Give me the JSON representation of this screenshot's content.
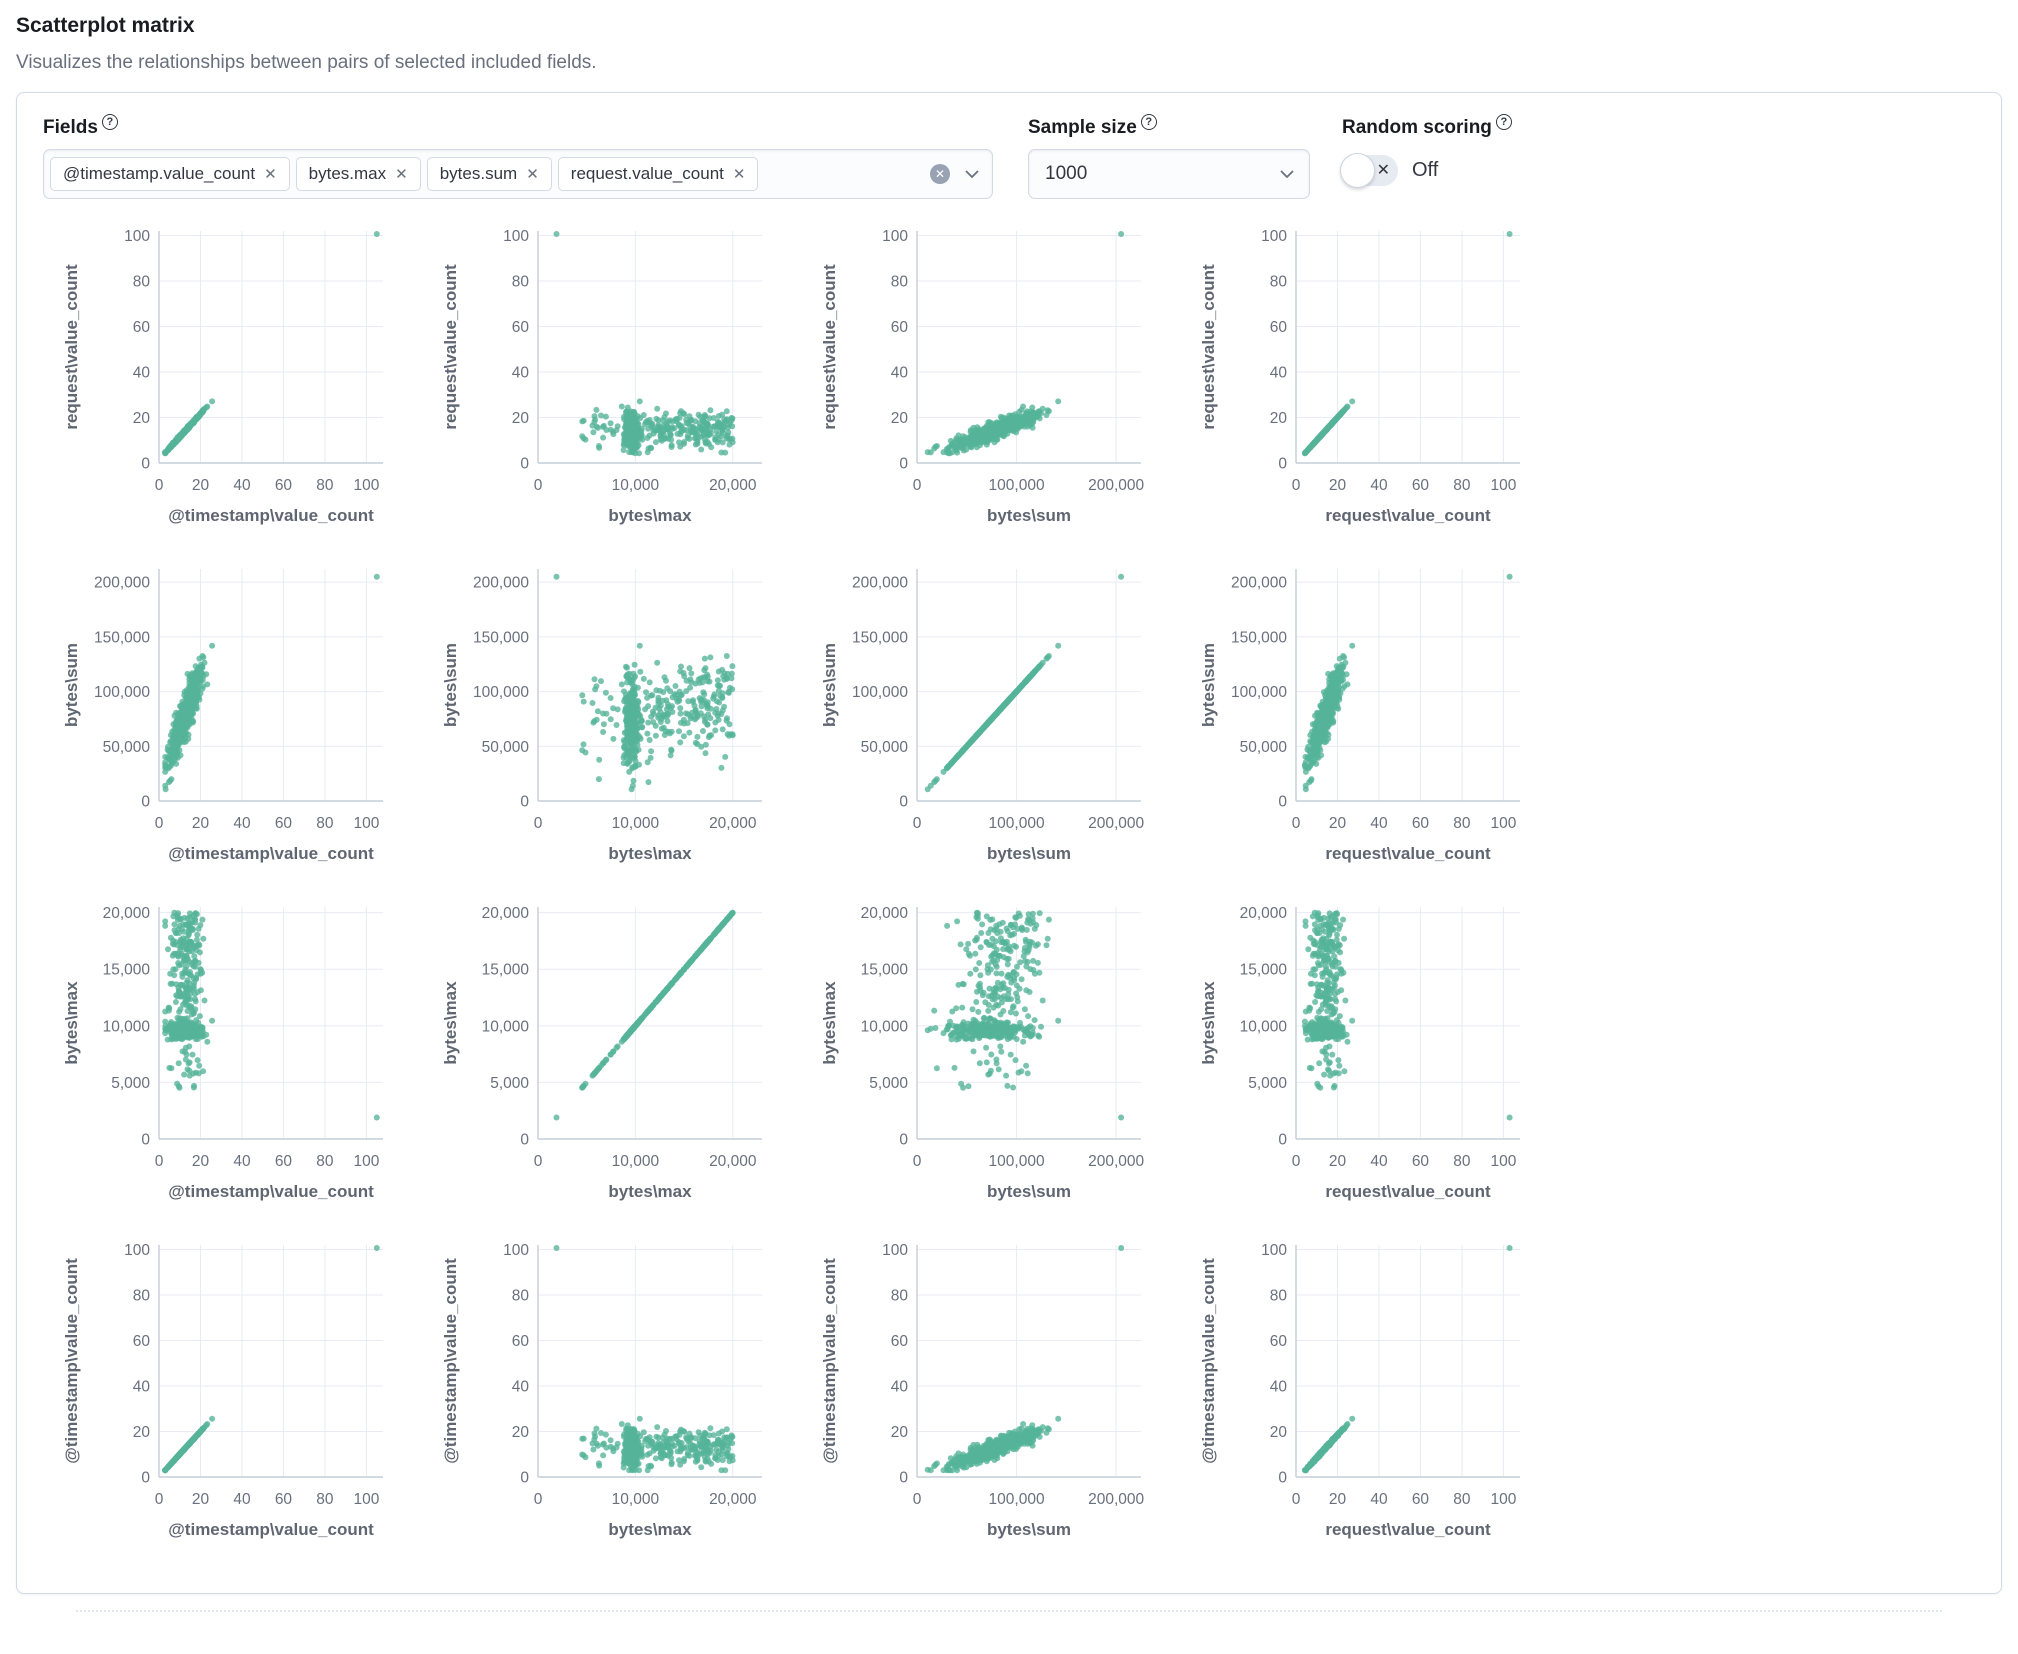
{
  "page": {
    "title": "Scatterplot matrix",
    "subtitle": "Visualizes the relationships between pairs of selected included fields."
  },
  "controls": {
    "help_glyph": "?",
    "fields": {
      "label": "Fields",
      "pills": [
        {
          "label": "@timestamp.value_count"
        },
        {
          "label": "bytes.max"
        },
        {
          "label": "bytes.sum"
        },
        {
          "label": "request.value_count"
        }
      ],
      "remove_glyph": "✕",
      "clear_glyph": "✕"
    },
    "sample_size": {
      "label": "Sample size",
      "value": "1000"
    },
    "random_scoring": {
      "label": "Random scoring",
      "cross_glyph": "✕",
      "state_label": "Off"
    }
  },
  "chart_data": {
    "type": "scatter",
    "subtype": "scatterplot-matrix",
    "point_color": "#54B399",
    "grid_color": "#e8ebf3",
    "domain_color": "#c6cdd9",
    "tick_color": "#69707d",
    "axis_title_color": "#5f6672",
    "grid": true,
    "legend": "none",
    "rows_top_to_bottom": [
      "r",
      "s",
      "m",
      "t"
    ],
    "cols_left_to_right": [
      "t",
      "m",
      "s",
      "r"
    ],
    "axes": {
      "t": {
        "label": "@timestamp\\value_count",
        "x": {
          "domain": [
            0,
            108
          ],
          "ticks": [
            0,
            20,
            40,
            60,
            80,
            100
          ]
        },
        "y": {
          "domain": [
            0,
            102
          ],
          "ticks": [
            0,
            20,
            40,
            60,
            80,
            100
          ]
        }
      },
      "r": {
        "label": "request\\value_count",
        "x": {
          "domain": [
            0,
            108
          ],
          "ticks": [
            0,
            20,
            40,
            60,
            80,
            100
          ]
        },
        "y": {
          "domain": [
            0,
            102
          ],
          "ticks": [
            0,
            20,
            40,
            60,
            80,
            100
          ]
        }
      },
      "m": {
        "label": "bytes\\max",
        "x": {
          "domain": [
            0,
            23000
          ],
          "ticks": [
            0,
            10000,
            20000
          ]
        },
        "y": {
          "domain": [
            0,
            20500
          ],
          "ticks": [
            0,
            5000,
            10000,
            15000,
            20000
          ]
        }
      },
      "s": {
        "label": "bytes\\sum",
        "x": {
          "domain": [
            0,
            225000
          ],
          "ticks": [
            0,
            100000,
            200000
          ]
        },
        "y": {
          "domain": [
            0,
            212000
          ],
          "ticks": [
            0,
            50000,
            100000,
            150000,
            200000
          ]
        }
      }
    },
    "generator": {
      "seed": 1337,
      "n": 550,
      "t": {
        "mean": 13,
        "sd": 4.3,
        "min": 3,
        "max": 28
      },
      "r": {
        "offset": 1.5,
        "noise_sd": 0.25
      },
      "m": {
        "band_frac": 0.52,
        "band_mean": 9600,
        "band_sd": 380,
        "spread_min": 10300,
        "spread_max": 20000,
        "spread_bias": 0.8,
        "low_frac": 0.05,
        "low_min": 4500,
        "low_max": 8200,
        "cap": 20000
      },
      "s": {
        "t_coef": 4700,
        "m_coef": 1.55,
        "noise_sd": 8500,
        "min": 8000,
        "max": 185000
      }
    },
    "outlier": {
      "t": 105,
      "r": 103,
      "m": 1900,
      "s": 205000
    }
  }
}
